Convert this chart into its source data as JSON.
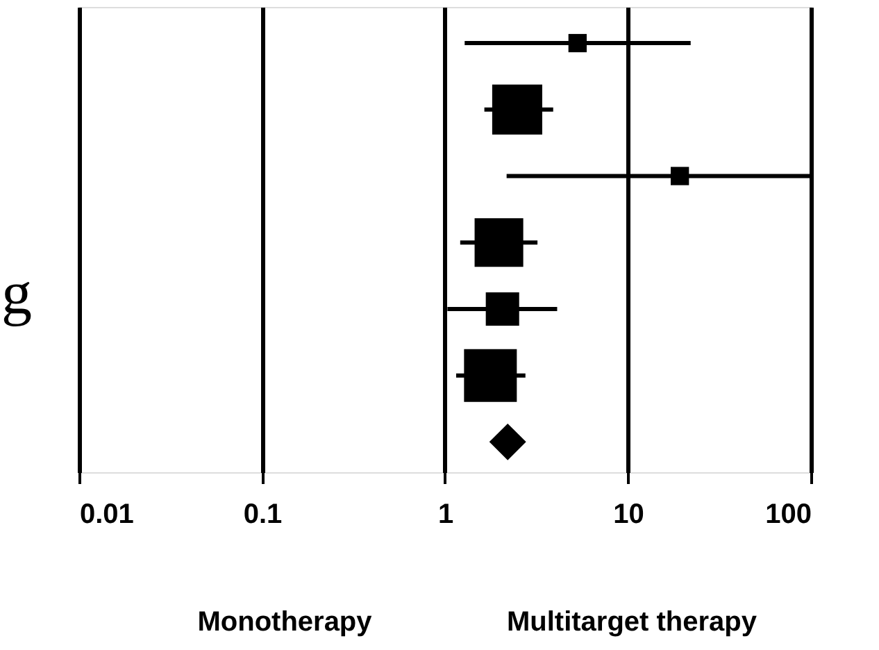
{
  "chart_data": {
    "type": "bubble",
    "orientation": "horizontal",
    "categories": [
      null,
      null,
      null,
      null,
      null,
      null,
      null
    ],
    "series": [
      {
        "marker": "square",
        "color": "#000000",
        "values": [
          5.3,
          2.48,
          19.2,
          1.97,
          2.06,
          1.77,
          null
        ],
        "sizes": [
          0.12,
          0.9,
          0.12,
          0.85,
          0.4,
          1,
          null
        ],
        "errors": [
          [
            1.28,
            22
          ],
          [
            1.64,
            3.9
          ],
          [
            2.17,
            100
          ],
          [
            1.21,
            3.2
          ],
          [
            1.03,
            4.1
          ],
          [
            1.15,
            2.75
          ],
          null
        ]
      },
      {
        "type": "scatter",
        "marker": "diamond",
        "color": "#000000",
        "values": [
          null,
          null,
          null,
          null,
          null,
          null,
          2.2
        ]
      }
    ],
    "xlim": [
      0.01,
      100
    ],
    "xticks": [
      0.01,
      0.1,
      1,
      10,
      100
    ],
    "log": "x",
    "grid": "x",
    "annotations": [
      "g",
      "Monotherapy",
      "Multitarget therapy"
    ]
  }
}
